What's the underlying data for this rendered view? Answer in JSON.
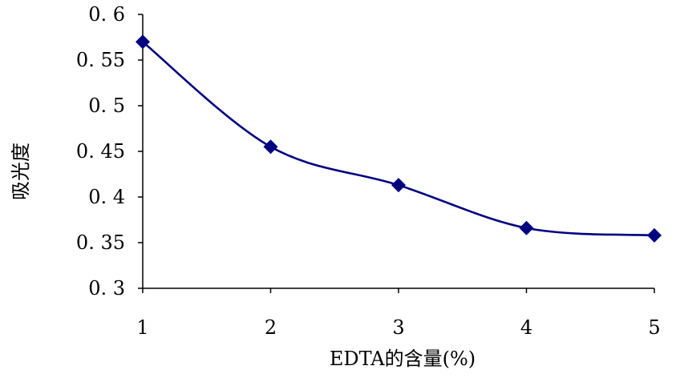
{
  "chart_data": {
    "type": "line",
    "x": [
      1,
      2,
      3,
      4,
      5
    ],
    "series": [
      {
        "values": [
          0.57,
          0.455,
          0.413,
          0.366,
          0.358
        ]
      }
    ],
    "xlabel": "EDTA的含量(%)",
    "ylabel": "吸光度",
    "xticks": [
      "1",
      "2",
      "3",
      "4",
      "5"
    ],
    "yticks": [
      "0. 3",
      "0. 35",
      "0. 4",
      "0. 45",
      "0. 5",
      "0. 55",
      "0. 6"
    ],
    "ytick_values": [
      0.3,
      0.35,
      0.4,
      0.45,
      0.5,
      0.55,
      0.6
    ],
    "xlim": [
      1,
      5
    ],
    "ylim": [
      0.3,
      0.6
    ],
    "grid": false,
    "colors": {
      "line": "#000080",
      "marker": "#000080"
    }
  }
}
